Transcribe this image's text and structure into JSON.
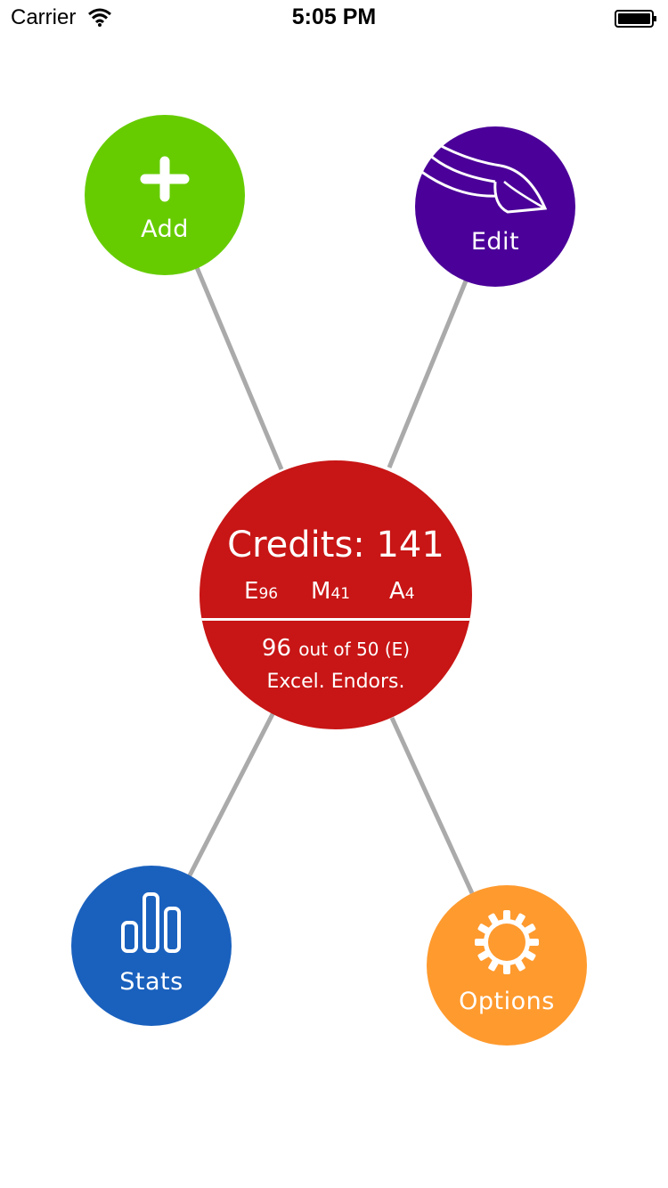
{
  "status_bar": {
    "carrier": "Carrier",
    "time": "5:05 PM",
    "icons": [
      "wifi-icon",
      "battery-icon"
    ]
  },
  "menu": {
    "add": {
      "label": "Add",
      "icon": "plus-icon",
      "color": "#66CC00"
    },
    "edit": {
      "label": "Edit",
      "icon": "pen-icon",
      "color": "#4B0099"
    },
    "stats": {
      "label": "Stats",
      "icon": "bar-chart-icon",
      "color": "#1A61BE"
    },
    "options": {
      "label": "Options",
      "icon": "gear-icon",
      "color": "#FF9A2E"
    }
  },
  "credits": {
    "title": "Credits: 141",
    "color": "#C81515",
    "breakdown": [
      {
        "letter": "E",
        "value": "96"
      },
      {
        "letter": "M",
        "value": "41"
      },
      {
        "letter": "A",
        "value": "4"
      }
    ],
    "progress_value": "96",
    "progress_text": "out of 50 (E)",
    "rank": "Excel. Endors."
  },
  "connector_color": "#AAAAAA"
}
